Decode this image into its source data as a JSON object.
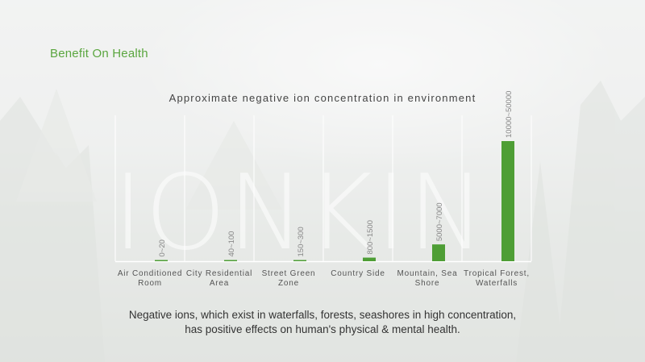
{
  "header": {
    "title": "Benefit On Health"
  },
  "watermark": "IONKIN",
  "caption": {
    "line1": "Negative ions, which exist in waterfalls, forests, seashores in high concentration,",
    "line2": "has positive effects on human's physical & mental health."
  },
  "colors": {
    "accent": "#5aa63f",
    "bar": "#4e9e35",
    "text": "#444444"
  },
  "chart_data": {
    "type": "bar",
    "title": "Approximate negative ion concentration in environment",
    "xlabel": "",
    "ylabel": "",
    "ylim": [
      0,
      50000
    ],
    "grid": true,
    "legend": "none",
    "categories": [
      [
        "Air Conditioned",
        "Room"
      ],
      [
        "City Residential",
        "Area"
      ],
      [
        "Street Green",
        "Zone"
      ],
      [
        "Country Side"
      ],
      [
        "Mountain, Sea",
        "Shore"
      ],
      [
        "Tropical Forest,",
        "Waterfalls"
      ]
    ],
    "values": [
      20,
      100,
      300,
      1500,
      7000,
      50000
    ],
    "value_labels": [
      "0~20",
      "40~100",
      "150~300",
      "800~1500",
      "5000~7000",
      "10000~50000"
    ]
  }
}
